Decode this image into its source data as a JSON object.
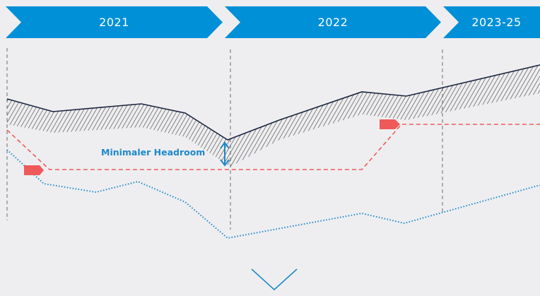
{
  "timeline": {
    "phases": [
      {
        "label": "2021"
      },
      {
        "label": "2022"
      },
      {
        "label": "2023-25"
      }
    ],
    "color": "#0090d8",
    "text_color": "#ffffff"
  },
  "annotation": {
    "label": "Minimaler Headroom",
    "color": "#1e88c9"
  },
  "colors": {
    "background": "#eeeef0",
    "upper_line": "#1c2640",
    "hatch": "#555555",
    "threshold_line": "#ee5a5a",
    "marker": "#ee5a5a",
    "lower_line": "#1e88c9",
    "separator": "#8a8a8a",
    "chevron_down": "#1e88c9"
  },
  "icons": {
    "markers": "flag-marker-icon",
    "annotation_arrow": "double-arrow-vertical-icon",
    "bottom": "chevron-down-icon"
  }
}
